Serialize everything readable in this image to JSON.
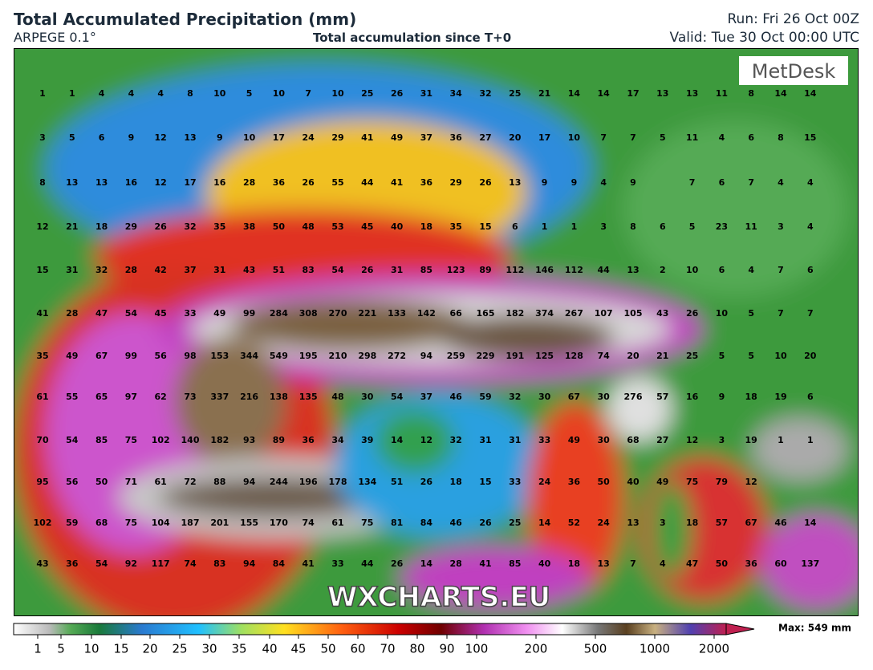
{
  "header": {
    "title": "Total Accumulated Precipitation (mm)",
    "model": "ARPEGE 0.1°",
    "subtitle": "Total accumulation since T+0",
    "run": "Run: Fri 26 Oct 00Z",
    "valid": "Valid: Tue 30 Oct 00:00 UTC"
  },
  "logo": "MetDesk",
  "watermark": "WXCHARTS.EU",
  "grid": [
    [
      1,
      1,
      4,
      4,
      4,
      8,
      10,
      5,
      10,
      7,
      10,
      25,
      26,
      31,
      34,
      32,
      25,
      21,
      14,
      14,
      17,
      13,
      13,
      11,
      8,
      14,
      14
    ],
    [
      3,
      5,
      6,
      9,
      12,
      13,
      9,
      10,
      17,
      24,
      29,
      41,
      49,
      37,
      36,
      27,
      20,
      17,
      10,
      7,
      7,
      5,
      11,
      4,
      6,
      8,
      15
    ],
    [
      8,
      13,
      13,
      16,
      12,
      17,
      16,
      28,
      36,
      26,
      55,
      44,
      41,
      36,
      29,
      26,
      13,
      9,
      9,
      4,
      9,
      null,
      7,
      6,
      7,
      4,
      4
    ],
    [
      12,
      21,
      18,
      29,
      26,
      32,
      35,
      38,
      50,
      48,
      53,
      45,
      40,
      18,
      35,
      15,
      6,
      1,
      1,
      3,
      8,
      6,
      5,
      23,
      11,
      3,
      4
    ],
    [
      15,
      31,
      32,
      28,
      42,
      37,
      31,
      43,
      51,
      83,
      54,
      26,
      31,
      85,
      123,
      89,
      112,
      146,
      112,
      44,
      13,
      2,
      10,
      6,
      4,
      7,
      6
    ],
    [
      41,
      28,
      47,
      54,
      45,
      33,
      49,
      99,
      284,
      308,
      270,
      221,
      133,
      142,
      66,
      165,
      182,
      374,
      267,
      107,
      105,
      43,
      26,
      10,
      5,
      7,
      7
    ],
    [
      35,
      49,
      67,
      99,
      56,
      98,
      153,
      344,
      549,
      195,
      210,
      298,
      272,
      94,
      259,
      229,
      191,
      125,
      128,
      74,
      20,
      21,
      25,
      5,
      5,
      10,
      20
    ],
    [
      61,
      55,
      65,
      97,
      62,
      73,
      337,
      216,
      138,
      135,
      48,
      30,
      54,
      37,
      46,
      59,
      32,
      30,
      67,
      30,
      276,
      57,
      16,
      9,
      18,
      19,
      6
    ],
    [
      70,
      54,
      85,
      75,
      102,
      140,
      182,
      93,
      89,
      36,
      34,
      39,
      14,
      12,
      32,
      31,
      31,
      33,
      49,
      30,
      68,
      27,
      12,
      3,
      19,
      1,
      1
    ],
    [
      95,
      56,
      50,
      71,
      61,
      72,
      88,
      94,
      244,
      196,
      178,
      134,
      51,
      26,
      18,
      15,
      33,
      24,
      36,
      50,
      40,
      49,
      75,
      79,
      12,
      null,
      null
    ],
    [
      102,
      59,
      68,
      75,
      104,
      187,
      201,
      155,
      170,
      74,
      61,
      75,
      81,
      84,
      46,
      26,
      25,
      14,
      52,
      24,
      13,
      3,
      18,
      57,
      67,
      46,
      14
    ],
    [
      43,
      36,
      54,
      92,
      117,
      74,
      83,
      94,
      84,
      41,
      33,
      44,
      26,
      14,
      28,
      41,
      85,
      40,
      18,
      13,
      7,
      4,
      47,
      50,
      36,
      60,
      137
    ]
  ],
  "colorbar": {
    "labels": [
      "1",
      "5",
      "10",
      "15",
      "20",
      "25",
      "30",
      "35",
      "40",
      "45",
      "50",
      "60",
      "70",
      "80",
      "90",
      "100",
      "200",
      "500",
      "1000",
      "2000"
    ],
    "max": "Max: 549 mm"
  }
}
